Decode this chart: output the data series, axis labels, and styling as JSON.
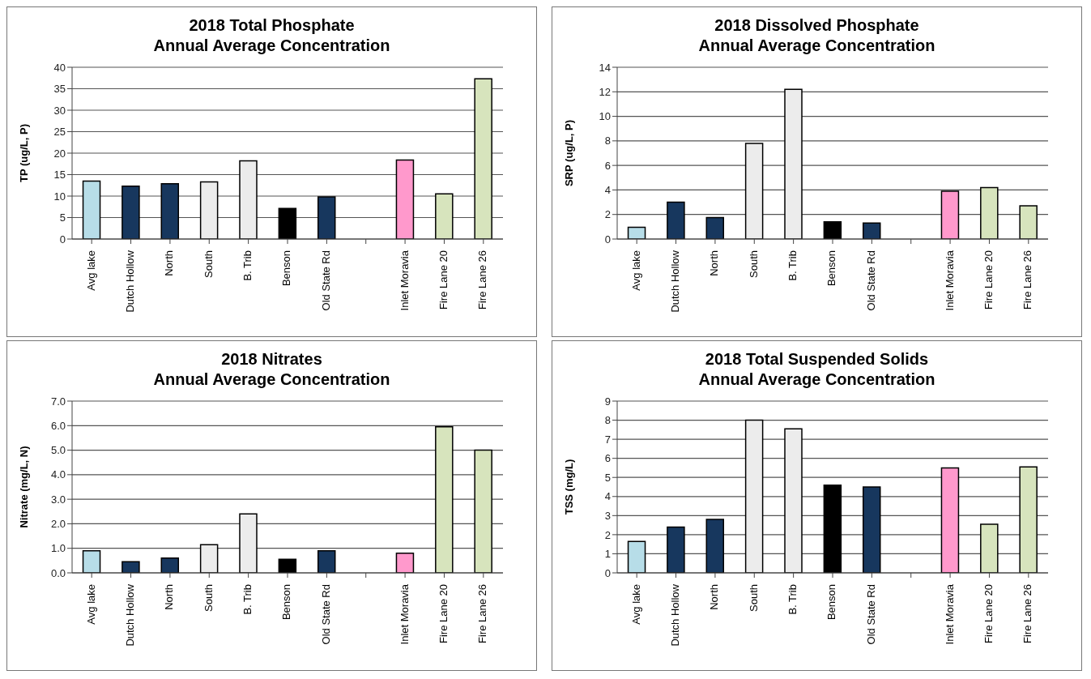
{
  "chart_data": [
    {
      "type": "bar",
      "title": "2018 Total Phosphate",
      "subtitle": "Annual Average Concentration",
      "ylabel": "TP (ug/L, P)",
      "categories": [
        "Avg lake",
        "Dutch Hollow",
        "North",
        "South",
        "B. Trib",
        "Benson",
        "Old State Rd",
        null,
        "Inlet Moravia",
        "Fire Lane 20",
        "Fire Lane 26"
      ],
      "values": [
        13.5,
        12.3,
        12.9,
        13.3,
        18.2,
        7.1,
        9.8,
        null,
        18.4,
        10.5,
        37.3
      ],
      "colors": [
        "#b7dde8",
        "#17375e",
        "#17375e",
        "#ececec",
        "#ececec",
        "#000000",
        "#17375e",
        "#ffffff",
        "#ff99cc",
        "#d7e4bd",
        "#d7e4bd"
      ],
      "ylim": [
        0,
        40
      ],
      "yticks": [
        0,
        5,
        10,
        15,
        20,
        25,
        30,
        35,
        40
      ],
      "grid": "y"
    },
    {
      "type": "bar",
      "title": "2018 Dissolved Phosphate",
      "subtitle": "Annual Average Concentration",
      "ylabel": "SRP (ug/L, P)",
      "categories": [
        "Avg lake",
        "Dutch Hollow",
        "North",
        "South",
        "B. Trib",
        "Benson",
        "Old State Rd",
        null,
        "Inlet Moravia",
        "Fire Lane 20",
        "Fire Lane 26"
      ],
      "values": [
        0.95,
        3.0,
        1.75,
        7.8,
        12.2,
        1.4,
        1.3,
        null,
        3.9,
        4.2,
        2.7
      ],
      "colors": [
        "#b7dde8",
        "#17375e",
        "#17375e",
        "#ececec",
        "#ececec",
        "#000000",
        "#17375e",
        "#ffffff",
        "#ff99cc",
        "#d7e4bd",
        "#d7e4bd"
      ],
      "ylim": [
        0,
        14
      ],
      "yticks": [
        0,
        2,
        4,
        6,
        8,
        10,
        12,
        14
      ],
      "grid": "y"
    },
    {
      "type": "bar",
      "title": "2018 Nitrates",
      "subtitle": "Annual Average Concentration",
      "ylabel": "Nitrate (mg/L, N)",
      "categories": [
        "Avg lake",
        "Dutch Hollow",
        "North",
        "South",
        "B. Trib",
        "Benson",
        "Old State Rd",
        null,
        "Inlet Moravia",
        "Fire Lane 20",
        "Fire Lane 26"
      ],
      "values": [
        0.9,
        0.45,
        0.6,
        1.15,
        2.4,
        0.55,
        0.9,
        null,
        0.8,
        5.95,
        5.0
      ],
      "colors": [
        "#b7dde8",
        "#17375e",
        "#17375e",
        "#ececec",
        "#ececec",
        "#000000",
        "#17375e",
        "#ffffff",
        "#ff99cc",
        "#d7e4bd",
        "#d7e4bd"
      ],
      "ylim": [
        0,
        7
      ],
      "yticks": [
        {
          "value": 0,
          "label": "0.0"
        },
        {
          "value": 1,
          "label": "1.0"
        },
        {
          "value": 2,
          "label": "2.0"
        },
        {
          "value": 3,
          "label": "3.0"
        },
        {
          "value": 4,
          "label": "4.0"
        },
        {
          "value": 5,
          "label": "5.0"
        },
        {
          "value": 6,
          "label": "6.0"
        },
        {
          "value": 7,
          "label": "7.0"
        }
      ],
      "grid": "y"
    },
    {
      "type": "bar",
      "title": "2018 Total Suspended Solids",
      "subtitle": "Annual Average Concentration",
      "ylabel": "TSS (mg/L)",
      "categories": [
        "Avg lake",
        "Dutch Hollow",
        "North",
        "South",
        "B. Trib",
        "Benson",
        "Old State Rd",
        null,
        "Inlet Moravia",
        "Fire Lane 20",
        "Fire Lane 26"
      ],
      "values": [
        1.65,
        2.4,
        2.8,
        8.0,
        7.55,
        4.6,
        4.5,
        null,
        5.5,
        2.55,
        5.55
      ],
      "colors": [
        "#b7dde8",
        "#17375e",
        "#17375e",
        "#ececec",
        "#ececec",
        "#000000",
        "#17375e",
        "#ffffff",
        "#ff99cc",
        "#d7e4bd",
        "#d7e4bd"
      ],
      "ylim": [
        0,
        9
      ],
      "yticks": [
        0,
        1,
        2,
        3,
        4,
        5,
        6,
        7,
        8,
        9
      ],
      "grid": "y"
    }
  ]
}
